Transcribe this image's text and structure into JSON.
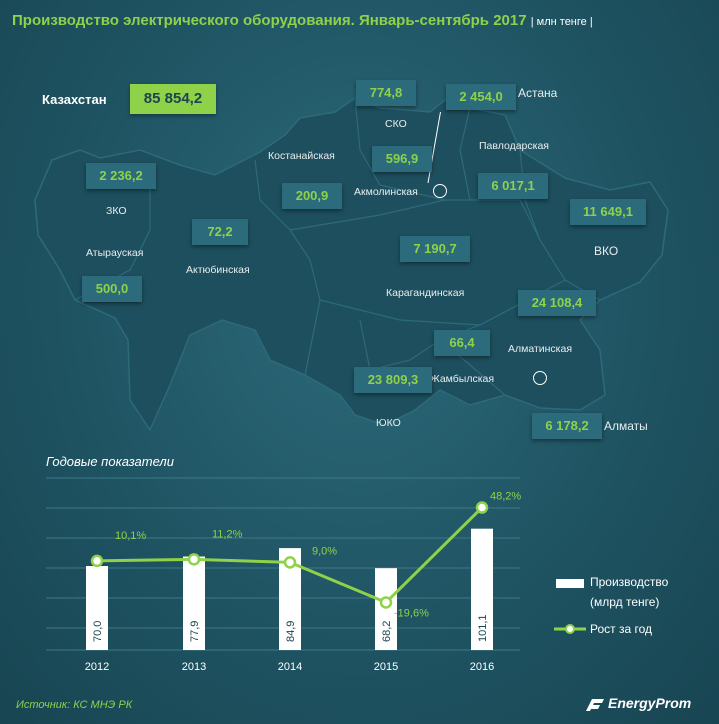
{
  "header": {
    "title": "Производство электрического оборудования. Январь-сентябрь 2017",
    "unit": "| млн тенге |"
  },
  "total": {
    "label": "Казахстан",
    "value": "85 854,2"
  },
  "regions": [
    {
      "name": "СКО",
      "value": "774,8"
    },
    {
      "name": "Астана",
      "value": "2 454,0"
    },
    {
      "name": "Павлодарская",
      "value": "6 017,1"
    },
    {
      "name": "Костанайская",
      "value": "200,9"
    },
    {
      "name": "Акмолинская",
      "value": "596,9"
    },
    {
      "name": "ЗКО",
      "value": "2 236,2"
    },
    {
      "name": "Актюбинская",
      "value": "72,2"
    },
    {
      "name": "Атырауская",
      "value": "500,0"
    },
    {
      "name": "ВКО",
      "value": "11 649,1"
    },
    {
      "name": "Карагандинская",
      "value": "7 190,7"
    },
    {
      "name": "Алматинская",
      "value": "24 108,4"
    },
    {
      "name": "Жамбылская",
      "value": "66,4"
    },
    {
      "name": "ЮКО",
      "value": "23 809,3"
    },
    {
      "name": "Алматы",
      "value": "6 178,2"
    }
  ],
  "section_title": "Годовые показатели",
  "chart_data": {
    "type": "bar",
    "categories": [
      "2012",
      "2013",
      "2014",
      "2015",
      "2016"
    ],
    "series": [
      {
        "name": "Производство (млрд тенге)",
        "type": "bar",
        "values": [
          70.0,
          77.9,
          84.9,
          68.2,
          101.1
        ],
        "labels": [
          "70,0",
          "77,9",
          "84,9",
          "68,2",
          "101,1"
        ]
      },
      {
        "name": "Рост за год",
        "type": "line",
        "values": [
          10.1,
          11.2,
          9.0,
          -19.6,
          48.2
        ],
        "labels": [
          "10,1%",
          "11,2%",
          "9,0%",
          "-19,6%",
          "48,2%"
        ]
      }
    ],
    "legend": [
      "Производство",
      "(млрд тенге)",
      "Рост за год"
    ],
    "grid": true,
    "colors": {
      "bar": "#ffffff",
      "line": "#8ed24a"
    }
  },
  "footer": {
    "source": "Источник: КС МНЭ РК",
    "brand": "EnergyProm"
  }
}
